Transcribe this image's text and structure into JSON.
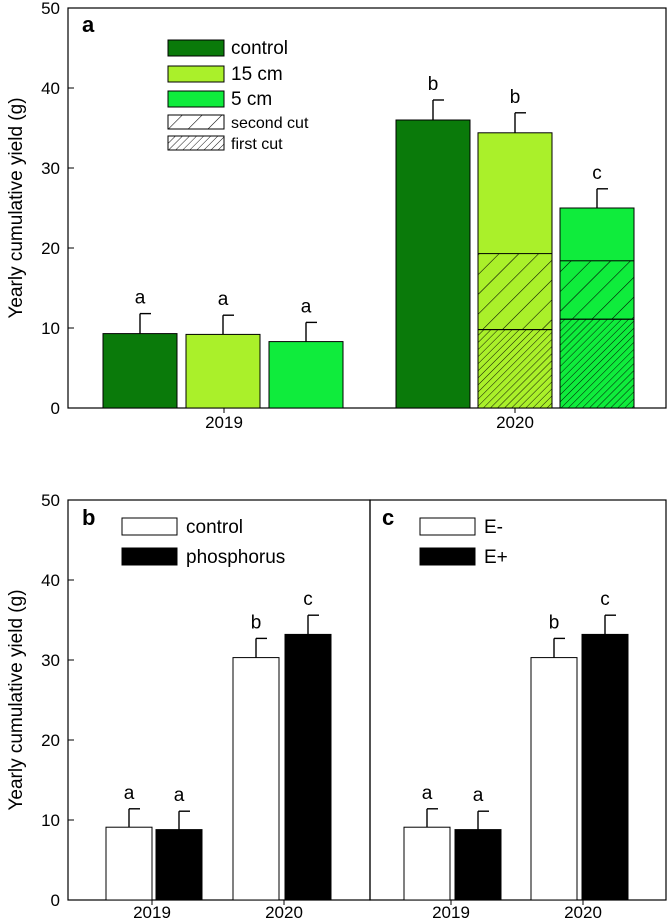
{
  "chart_data": [
    {
      "panel": "a",
      "type": "bar",
      "ylabel": "Yearly cumulative yield (g)",
      "ylim": [
        0,
        50
      ],
      "yticks": [
        0,
        10,
        20,
        30,
        40,
        50
      ],
      "categories": [
        "2019",
        "2020"
      ],
      "legend": [
        {
          "label": "control",
          "color": "#0a7a0a",
          "pattern": "none"
        },
        {
          "label": "15 cm",
          "color": "#aaf02a",
          "pattern": "none"
        },
        {
          "label": "5 cm",
          "color": "#0fec3c",
          "pattern": "none"
        },
        {
          "label": "second cut",
          "color": "#ffffff",
          "pattern": "wide-hatch"
        },
        {
          "label": "first cut",
          "color": "#ffffff",
          "pattern": "dense-hatch"
        }
      ],
      "series": [
        {
          "name": "control",
          "color": "#0a7a0a",
          "values": [
            9.3,
            36.0
          ],
          "errors": [
            2.5,
            2.5
          ],
          "letters": [
            "a",
            "b"
          ]
        },
        {
          "name": "15 cm",
          "color": "#aaf02a",
          "values": [
            9.2,
            34.4
          ],
          "errors": [
            2.4,
            2.5
          ],
          "letters": [
            "a",
            "b"
          ],
          "first_cut": [
            null,
            9.8
          ],
          "second_cut": [
            null,
            19.3
          ]
        },
        {
          "name": "5 cm",
          "color": "#0fec3c",
          "values": [
            8.3,
            25.0
          ],
          "errors": [
            2.4,
            2.4
          ],
          "letters": [
            "a",
            "c"
          ],
          "first_cut": [
            null,
            11.1
          ],
          "second_cut": [
            null,
            18.4
          ]
        }
      ]
    },
    {
      "panel": "b",
      "type": "bar",
      "ylabel": "Yearly cumulative yield (g)",
      "ylim": [
        0,
        50
      ],
      "yticks": [
        0,
        10,
        20,
        30,
        40,
        50
      ],
      "categories": [
        "2019",
        "2020"
      ],
      "legend": [
        {
          "label": "control",
          "color": "#ffffff"
        },
        {
          "label": "phosphorus",
          "color": "#000000"
        }
      ],
      "series": [
        {
          "name": "control",
          "color": "#ffffff",
          "values": [
            9.1,
            30.3
          ],
          "errors": [
            2.3,
            2.4
          ],
          "letters": [
            "a",
            "b"
          ]
        },
        {
          "name": "phosphorus",
          "color": "#000000",
          "values": [
            8.8,
            33.2
          ],
          "errors": [
            2.3,
            2.4
          ],
          "letters": [
            "a",
            "c"
          ]
        }
      ]
    },
    {
      "panel": "c",
      "type": "bar",
      "ylim": [
        0,
        50
      ],
      "categories": [
        "2019",
        "2020"
      ],
      "legend": [
        {
          "label": "E-",
          "color": "#ffffff"
        },
        {
          "label": "E+",
          "color": "#000000"
        }
      ],
      "series": [
        {
          "name": "E-",
          "color": "#ffffff",
          "values": [
            9.1,
            30.3
          ],
          "errors": [
            2.3,
            2.4
          ],
          "letters": [
            "a",
            "b"
          ]
        },
        {
          "name": "E+",
          "color": "#000000",
          "values": [
            8.8,
            33.2
          ],
          "errors": [
            2.3,
            2.4
          ],
          "letters": [
            "a",
            "c"
          ]
        }
      ]
    }
  ]
}
